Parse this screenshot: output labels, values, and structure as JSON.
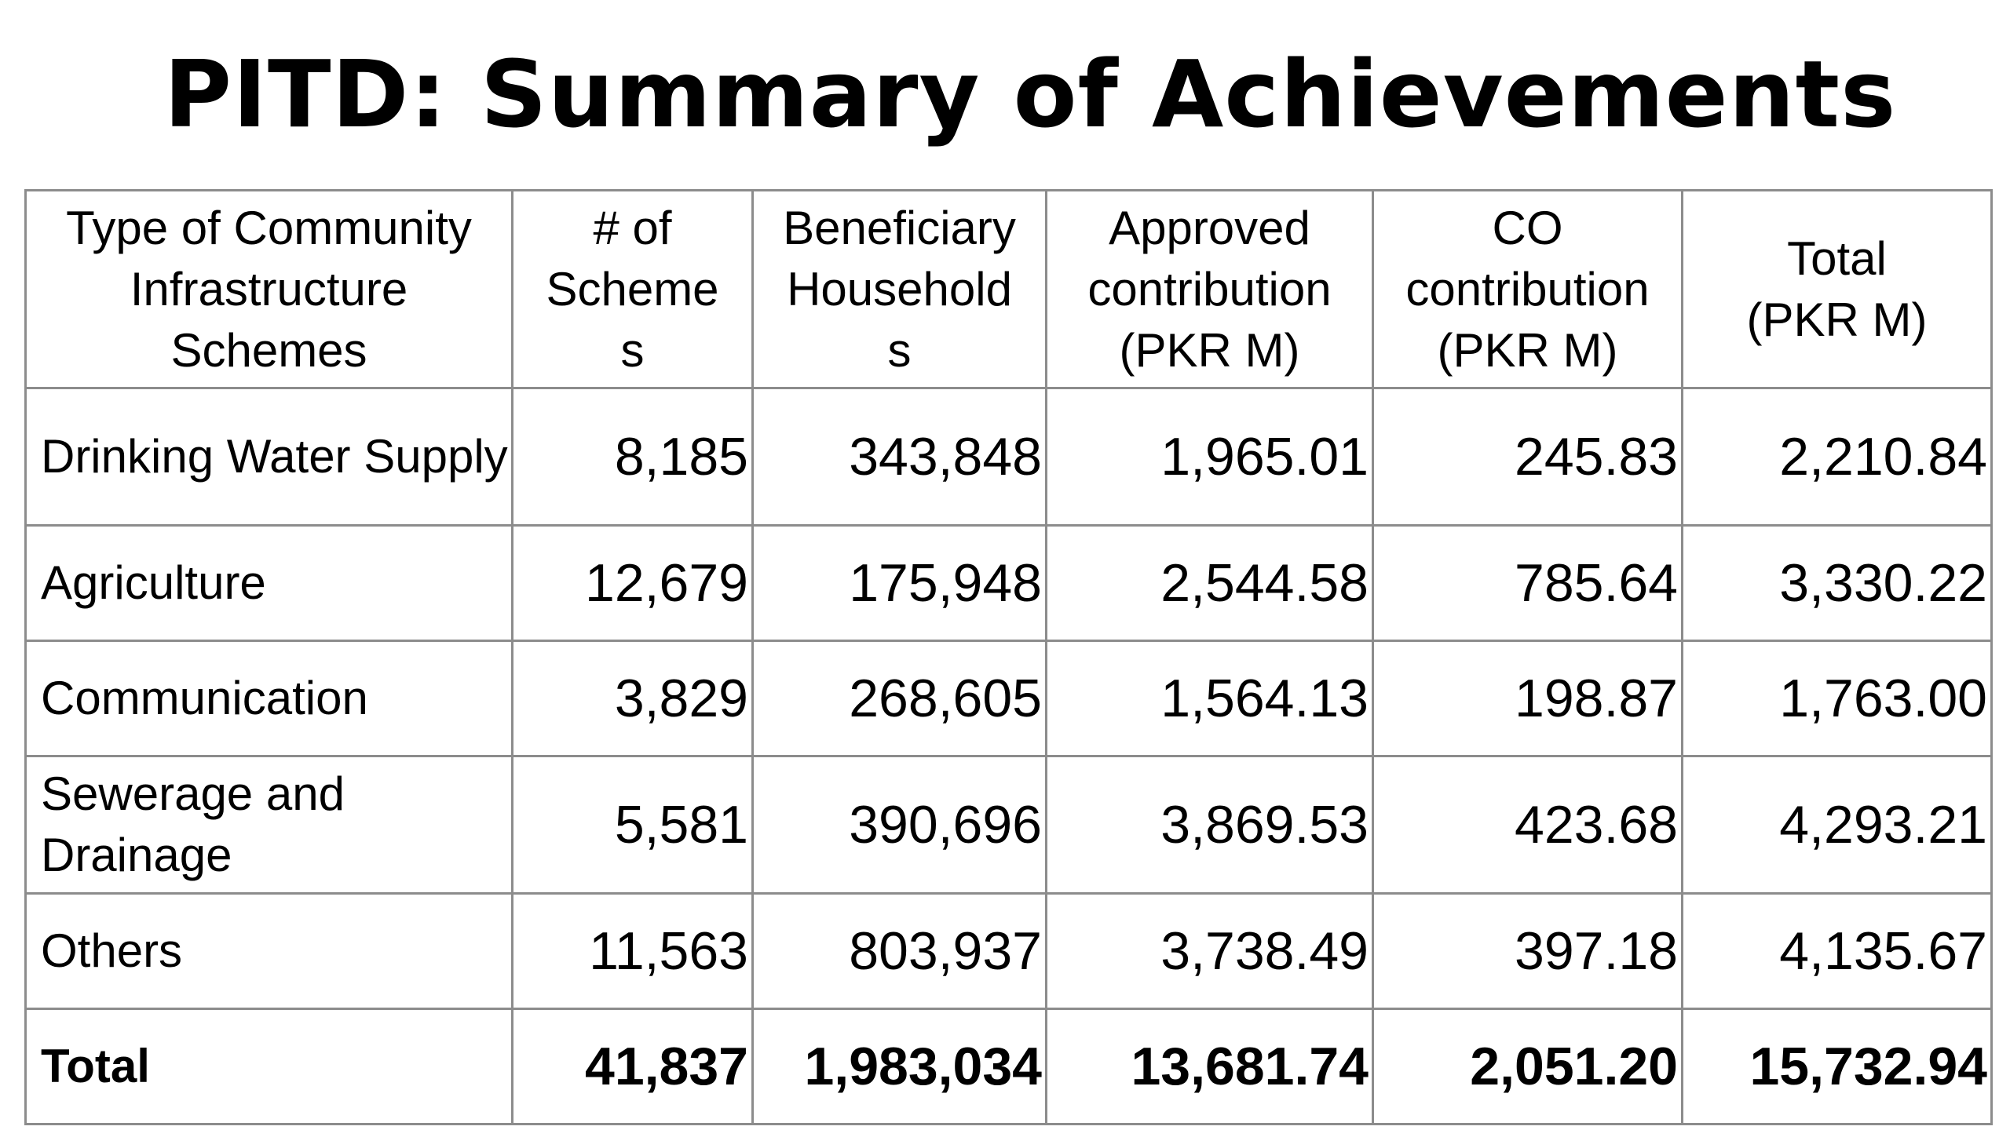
{
  "title": "PITD: Summary of Achievements",
  "table": {
    "headers": [
      "Type of Community\nInfrastructure\nSchemes",
      "# of\nScheme\ns",
      "Beneficiary\nHousehold\ns",
      "Approved\ncontribution\n(PKR M)",
      "CO\ncontribution\n(PKR M)",
      "Total\n(PKR M)"
    ],
    "rows": [
      {
        "type": "Drinking Water Supply",
        "schemes": "8,185",
        "households": "343,848",
        "approved": "1,965.01",
        "co": "245.83",
        "total": "2,210.84"
      },
      {
        "type": "Agriculture",
        "schemes": "12,679",
        "households": "175,948",
        "approved": "2,544.58",
        "co": "785.64",
        "total": "3,330.22"
      },
      {
        "type": "Communication",
        "schemes": "3,829",
        "households": "268,605",
        "approved": "1,564.13",
        "co": "198.87",
        "total": "1,763.00"
      },
      {
        "type": "Sewerage and Drainage",
        "schemes": "5,581",
        "households": "390,696",
        "approved": "3,869.53",
        "co": "423.68",
        "total": "4,293.21"
      },
      {
        "type": "Others",
        "schemes": "11,563",
        "households": "803,937",
        "approved": "3,738.49",
        "co": "397.18",
        "total": "4,135.67"
      }
    ],
    "total_row": {
      "type": "Total",
      "schemes": "41,837",
      "households": "1,983,034",
      "approved": "13,681.74",
      "co": "2,051.20",
      "total": "15,732.94"
    }
  }
}
